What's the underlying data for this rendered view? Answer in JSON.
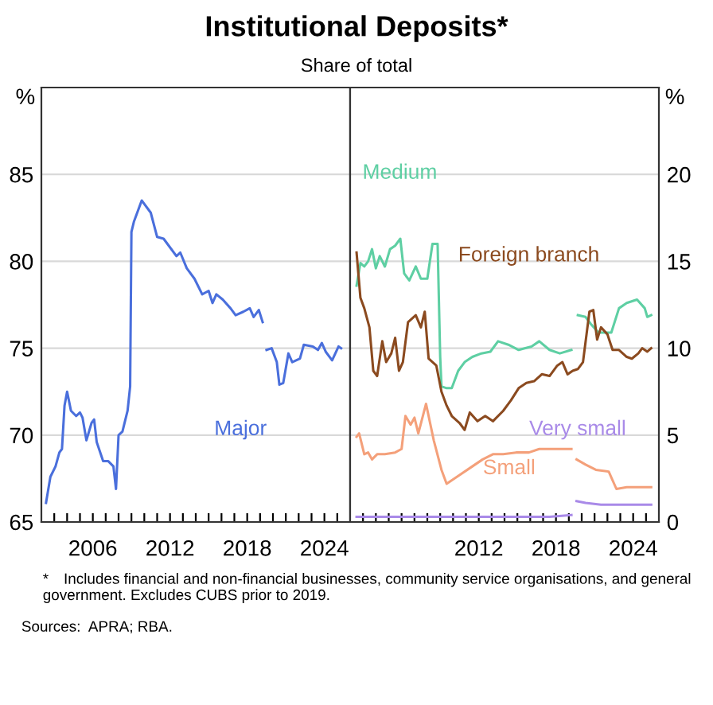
{
  "chart_data": [
    {
      "type": "line",
      "title": "Institutional Deposits*",
      "subtitle": "Share of total",
      "ylabel": "%",
      "annotations": [
        "* Includes financial and non-financial businesses, community service organisations, and general government. Excludes CUBS prior to 2019.",
        "Sources: APRA; RBA."
      ],
      "xlim": [
        2002,
        2026
      ],
      "ylim": [
        65,
        90
      ],
      "yticks": [
        65,
        70,
        75,
        80,
        85
      ],
      "xticks": [
        {
          "value": 2003,
          "label": null
        },
        {
          "value": 2004,
          "label": null
        },
        {
          "value": 2005,
          "label": null
        },
        2006,
        {
          "value": 2007,
          "label": null
        },
        {
          "value": 2008,
          "label": null
        },
        {
          "value": 2009,
          "label": null
        },
        {
          "value": 2010,
          "label": null
        },
        {
          "value": 2011,
          "label": null
        },
        2012,
        {
          "value": 2013,
          "label": null
        },
        {
          "value": 2014,
          "label": null
        },
        {
          "value": 2015,
          "label": null
        },
        {
          "value": 2016,
          "label": null
        },
        {
          "value": 2017,
          "label": null
        },
        2018,
        {
          "value": 2019,
          "label": null
        },
        {
          "value": 2020,
          "label": null
        },
        {
          "value": 2021,
          "label": null
        },
        {
          "value": 2022,
          "label": null
        },
        {
          "value": 2023,
          "label": null
        },
        2024,
        {
          "value": 2025,
          "label": null
        }
      ],
      "grid": "y",
      "legend": false,
      "series": [
        {
          "name": "Major",
          "color": "#4a6fdc",
          "x": [
            2002.36,
            2002.7,
            2003.1,
            2003.4,
            2003.6,
            2003.8,
            2004.0,
            2004.3,
            2004.7,
            2005.0,
            2005.2,
            2005.5,
            2005.9,
            2006.1,
            2006.3,
            2006.8,
            2007.2,
            2007.6,
            2007.8,
            2008.0,
            2008.3,
            2008.7,
            2008.9,
            2009.0,
            2009.2,
            2009.8,
            2010.5,
            2011.0,
            2011.5,
            2011.9,
            2012.5,
            2012.8,
            2013.3,
            2013.9,
            2014.5,
            2015.0,
            2015.3,
            2015.6,
            2016.1,
            2016.7,
            2017.1,
            2017.7,
            2018.2,
            2018.5,
            2018.9,
            2019.2,
            2019.35,
            2019.5,
            2019.9,
            2020.3,
            2020.5,
            2020.8,
            2021.2,
            2021.5,
            2022.1,
            2022.4,
            2023.1,
            2023.5,
            2023.8,
            2024.1,
            2024.6,
            2025.1,
            2025.3
          ],
          "values": [
            66.1,
            67.6,
            68.2,
            69.0,
            69.2,
            71.7,
            72.5,
            71.4,
            71.1,
            71.3,
            71.0,
            69.7,
            70.7,
            70.9,
            69.6,
            68.5,
            68.5,
            68.2,
            66.9,
            70.0,
            70.2,
            71.4,
            72.8,
            81.7,
            82.3,
            83.5,
            82.8,
            81.4,
            81.3,
            80.9,
            80.3,
            80.5,
            79.6,
            79.0,
            78.1,
            78.3,
            77.6,
            78.1,
            77.8,
            77.3,
            76.9,
            77.1,
            77.3,
            76.8,
            77.2,
            76.5,
            null,
            74.9,
            75.0,
            74.2,
            72.9,
            73.0,
            74.7,
            74.2,
            74.4,
            75.2,
            75.1,
            74.9,
            75.3,
            74.8,
            74.3,
            75.1,
            75.0
          ]
        }
      ]
    },
    {
      "type": "line",
      "ylabel": "%",
      "xlim": [
        2002,
        2026
      ],
      "ylim": [
        0,
        25
      ],
      "yticks": [
        0,
        5,
        10,
        15,
        20
      ],
      "xticks": [
        {
          "value": 2003,
          "label": null
        },
        {
          "value": 2004,
          "label": null
        },
        {
          "value": 2005,
          "label": null
        },
        {
          "value": 2006,
          "label": null
        },
        {
          "value": 2007,
          "label": null
        },
        {
          "value": 2008,
          "label": null
        },
        {
          "value": 2009,
          "label": null
        },
        {
          "value": 2010,
          "label": null
        },
        {
          "value": 2011,
          "label": null
        },
        2012,
        {
          "value": 2013,
          "label": null
        },
        {
          "value": 2014,
          "label": null
        },
        {
          "value": 2015,
          "label": null
        },
        {
          "value": 2016,
          "label": null
        },
        {
          "value": 2017,
          "label": null
        },
        2018,
        {
          "value": 2019,
          "label": null
        },
        {
          "value": 2020,
          "label": null
        },
        {
          "value": 2021,
          "label": null
        },
        {
          "value": 2022,
          "label": null
        },
        {
          "value": 2023,
          "label": null
        },
        2024,
        {
          "value": 2025,
          "label": null
        }
      ],
      "grid": "y",
      "legend": false,
      "series": [
        {
          "name": "Medium",
          "color": "#5ecfa3",
          "x": [
            2002.5,
            2002.8,
            2003.1,
            2003.4,
            2003.7,
            2004.0,
            2004.3,
            2004.7,
            2005.1,
            2005.5,
            2005.9,
            2006.2,
            2006.6,
            2007.1,
            2007.5,
            2008.0,
            2008.4,
            2008.8,
            2009.0,
            2009.1,
            2009.5,
            2009.9,
            2010.4,
            2010.9,
            2011.5,
            2012.2,
            2012.9,
            2013.5,
            2014.3,
            2015.1,
            2016.1,
            2016.7,
            2017.5,
            2018.3,
            2019.2,
            2019.45,
            2019.7,
            2020.3,
            2020.7,
            2021.3,
            2022.3,
            2022.9,
            2023.5,
            2024.3,
            2024.9,
            2025.1,
            2025.4
          ],
          "values": [
            13.6,
            14.9,
            14.7,
            15.0,
            15.7,
            14.6,
            15.3,
            14.7,
            15.7,
            15.9,
            16.3,
            14.3,
            13.9,
            14.7,
            14.0,
            14.0,
            16.0,
            16.0,
            9.5,
            7.8,
            7.7,
            7.7,
            8.7,
            9.2,
            9.5,
            9.7,
            9.8,
            10.4,
            10.2,
            9.9,
            10.1,
            10.4,
            9.9,
            9.7,
            9.9,
            null,
            11.9,
            11.8,
            11.4,
            10.9,
            10.9,
            12.3,
            12.6,
            12.8,
            12.3,
            11.8,
            11.9
          ]
        },
        {
          "name": "Foreign branch",
          "color": "#8b4a1f",
          "x": [
            2002.5,
            2002.8,
            2003.1,
            2003.5,
            2003.8,
            2004.1,
            2004.5,
            2004.8,
            2005.2,
            2005.5,
            2005.8,
            2006.1,
            2006.5,
            2007.1,
            2007.5,
            2007.8,
            2008.1,
            2008.7,
            2009.1,
            2009.5,
            2009.9,
            2010.5,
            2010.9,
            2011.3,
            2011.9,
            2012.5,
            2013.1,
            2013.9,
            2014.5,
            2015.1,
            2015.7,
            2016.3,
            2016.9,
            2017.5,
            2018.1,
            2018.5,
            2018.9,
            2019.3,
            2019.7,
            2020.1,
            2020.6,
            2020.9,
            2021.2,
            2021.5,
            2022.0,
            2022.4,
            2022.9,
            2023.5,
            2023.9,
            2024.4,
            2024.7,
            2025.1,
            2025.4
          ],
          "values": [
            15.5,
            12.9,
            12.3,
            11.2,
            8.7,
            8.4,
            10.4,
            9.2,
            9.7,
            10.6,
            8.7,
            9.2,
            11.5,
            11.9,
            11.2,
            12.1,
            9.4,
            9.0,
            7.5,
            6.7,
            6.1,
            5.7,
            5.3,
            6.3,
            5.8,
            6.1,
            5.8,
            6.4,
            7.0,
            7.7,
            8.0,
            8.1,
            8.5,
            8.4,
            9.0,
            9.2,
            8.5,
            8.7,
            8.8,
            9.2,
            12.1,
            12.2,
            10.5,
            11.2,
            10.8,
            9.9,
            9.9,
            9.5,
            9.4,
            9.7,
            10.0,
            9.8,
            10.0
          ]
        },
        {
          "name": "Very small",
          "color": "#a98ae8",
          "x": [
            2002.5,
            2009.5,
            2017.5,
            2019.2,
            2019.4,
            2019.6,
            2020.3,
            2021.5,
            2023.5,
            2025.4
          ],
          "values": [
            0.3,
            0.3,
            0.3,
            0.4,
            null,
            1.2,
            1.1,
            1.0,
            1.0,
            1.0
          ]
        },
        {
          "name": "Small",
          "color": "#f4a07a",
          "x": [
            2002.5,
            2002.7,
            2003.1,
            2003.4,
            2003.7,
            2004.1,
            2004.7,
            2005.5,
            2006.0,
            2006.3,
            2006.7,
            2007.0,
            2007.3,
            2007.9,
            2008.5,
            2009.1,
            2009.5,
            2010.3,
            2011.5,
            2012.3,
            2013.1,
            2013.9,
            2014.9,
            2015.9,
            2016.7,
            2017.5,
            2018.3,
            2019.2,
            2019.4,
            2019.6,
            2020.3,
            2021.1,
            2022.1,
            2022.7,
            2023.5,
            2024.5,
            2025.4
          ],
          "values": [
            4.9,
            5.1,
            3.9,
            4.0,
            3.6,
            3.9,
            3.9,
            4.0,
            4.2,
            6.1,
            5.6,
            6.0,
            5.1,
            6.8,
            4.7,
            3.0,
            2.2,
            2.6,
            3.2,
            3.6,
            3.9,
            3.9,
            4.0,
            4.0,
            4.2,
            4.2,
            4.2,
            4.2,
            null,
            3.6,
            3.3,
            3.0,
            2.9,
            1.9,
            2.0,
            2.0,
            2.0
          ]
        }
      ]
    }
  ]
}
